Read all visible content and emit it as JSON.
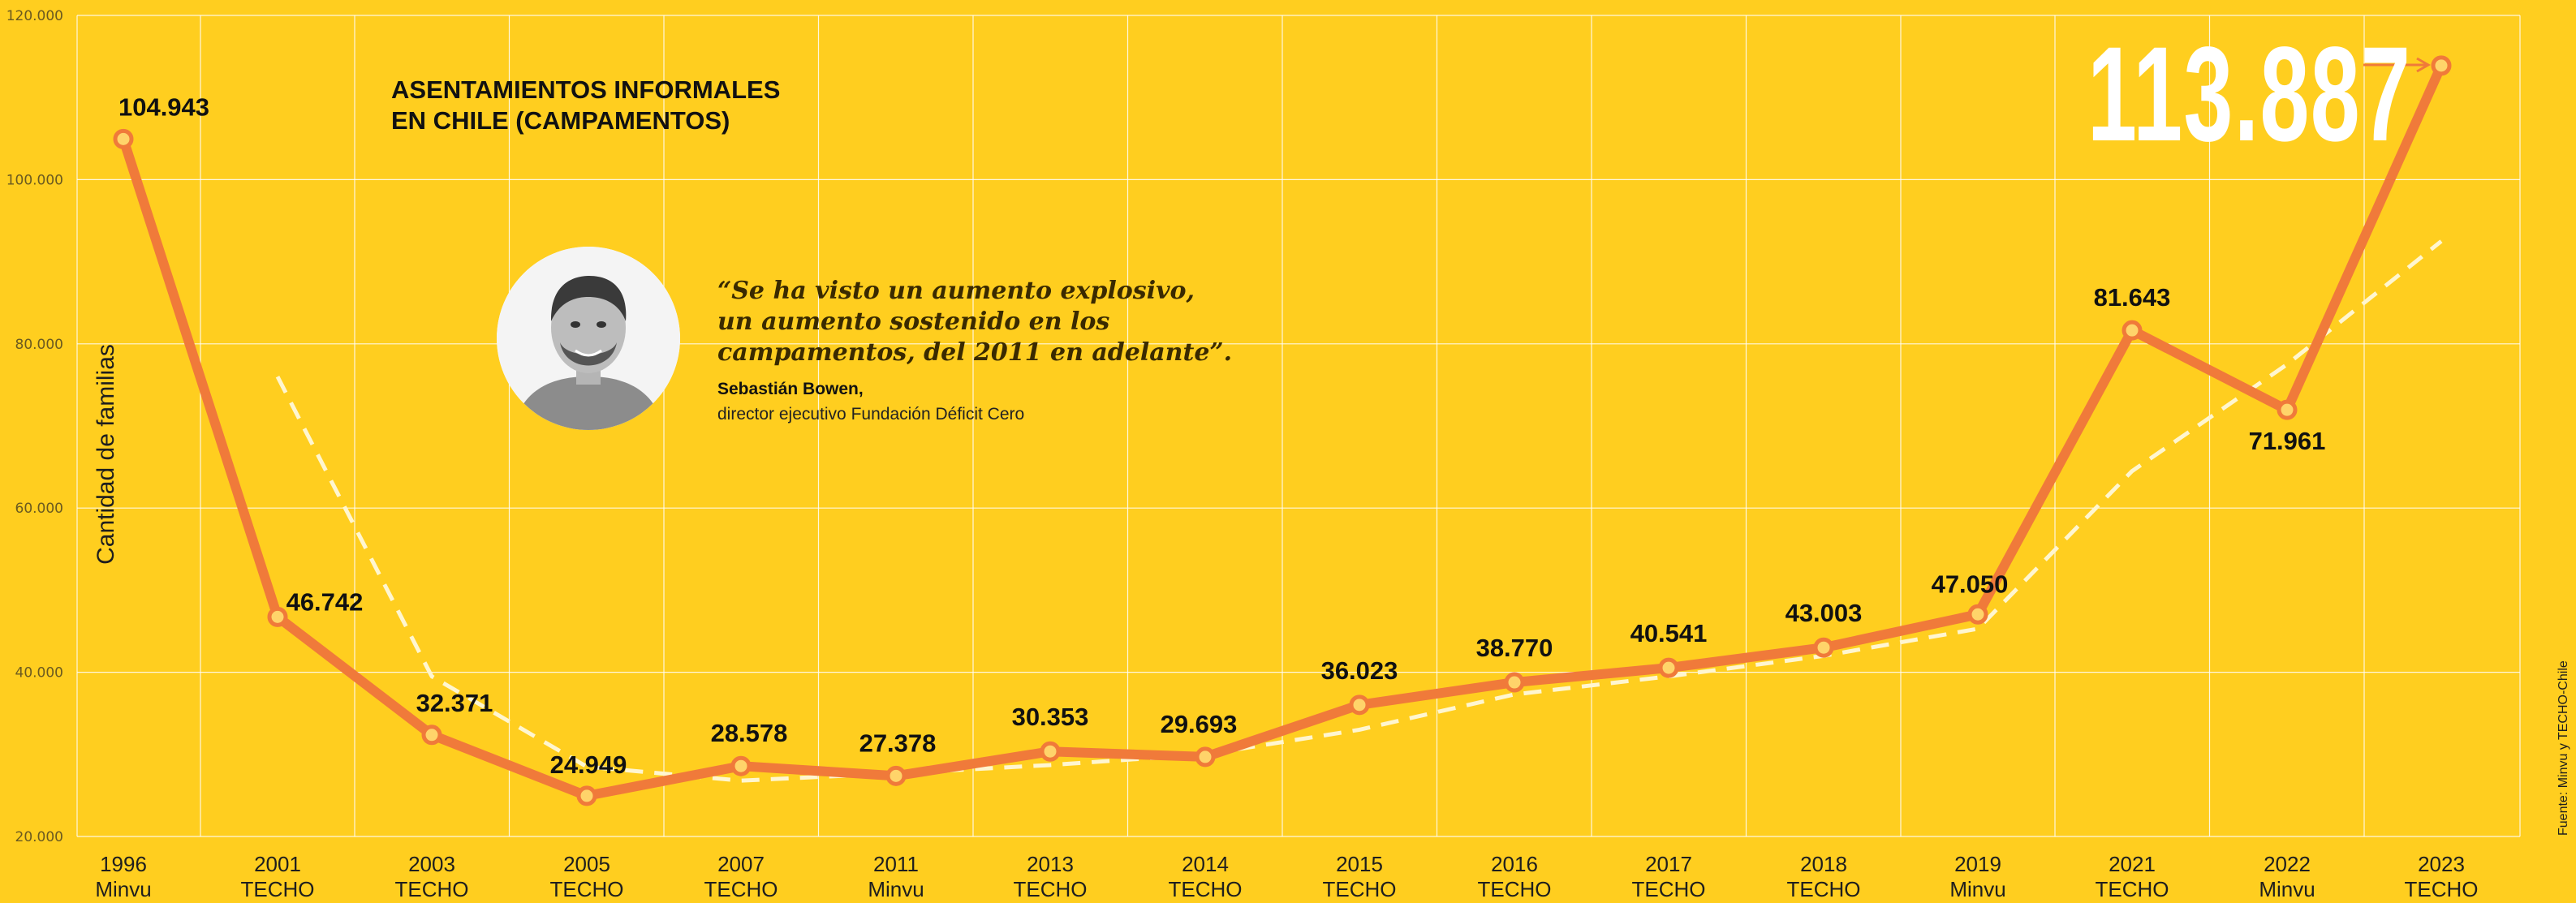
{
  "chart_data": {
    "type": "line",
    "title": "ASENTAMIENTOS INFORMALES",
    "title_line2": "EN CHILE (CAMPAMENTOS)",
    "ylabel": "Cantidad de familias",
    "ylim": [
      20000,
      120000
    ],
    "y_ticks": [
      20000,
      40000,
      60000,
      80000,
      100000,
      120000
    ],
    "y_tick_labels": [
      "20.000",
      "40.000",
      "60.000",
      "80.000",
      "100.000",
      "120.000"
    ],
    "grid": true,
    "categories": [
      {
        "year": "1996",
        "source": "Minvu"
      },
      {
        "year": "2001",
        "source": "TECHO"
      },
      {
        "year": "2003",
        "source": "TECHO"
      },
      {
        "year": "2005",
        "source": "TECHO"
      },
      {
        "year": "2007",
        "source": "TECHO"
      },
      {
        "year": "2011",
        "source": "Minvu"
      },
      {
        "year": "2013",
        "source": "TECHO"
      },
      {
        "year": "2014",
        "source": "TECHO"
      },
      {
        "year": "2015",
        "source": "TECHO"
      },
      {
        "year": "2016",
        "source": "TECHO"
      },
      {
        "year": "2017",
        "source": "TECHO"
      },
      {
        "year": "2018",
        "source": "TECHO"
      },
      {
        "year": "2019",
        "source": "Minvu"
      },
      {
        "year": "2021",
        "source": "TECHO"
      },
      {
        "year": "2022",
        "source": "Minvu"
      },
      {
        "year": "2023",
        "source": "TECHO"
      }
    ],
    "series": [
      {
        "color": "#F07A3A",
        "values": [
          104943,
          46742,
          32371,
          24949,
          28578,
          27378,
          30353,
          29693,
          36023,
          38770,
          40541,
          43003,
          47050,
          81643,
          71961,
          113887
        ],
        "labels": [
          "104.943",
          "46.742",
          "32.371",
          "24.949",
          "28.578",
          "27.378",
          "30.353",
          "29.693",
          "36.023",
          "38.770",
          "40.541",
          "43.003",
          "47.050",
          "81.643",
          "71.961",
          ""
        ]
      },
      {
        "style": "dashed",
        "color": "#FFF6D0",
        "values": [
          null,
          76000,
          39500,
          28500,
          26800,
          27700,
          28700,
          30000,
          33000,
          37300,
          39500,
          42000,
          45300,
          64500,
          77500,
          92500
        ]
      }
    ],
    "highlight_value": "113.887",
    "source_note": "Fuente: Minvu y TECHO-Chile"
  },
  "quote": {
    "lines": [
      "“Se ha visto un aumento explosivo,",
      "un aumento sostenido en los",
      "campamentos, del 2011 en adelante”."
    ],
    "author": "Sebastián Bowen,",
    "role": "director ejecutivo Fundación Déficit Cero"
  },
  "colors": {
    "background": "#FFCE1F",
    "line": "#F07A3A",
    "trend": "#FFF6D0",
    "grid": "#FFFFFF"
  }
}
